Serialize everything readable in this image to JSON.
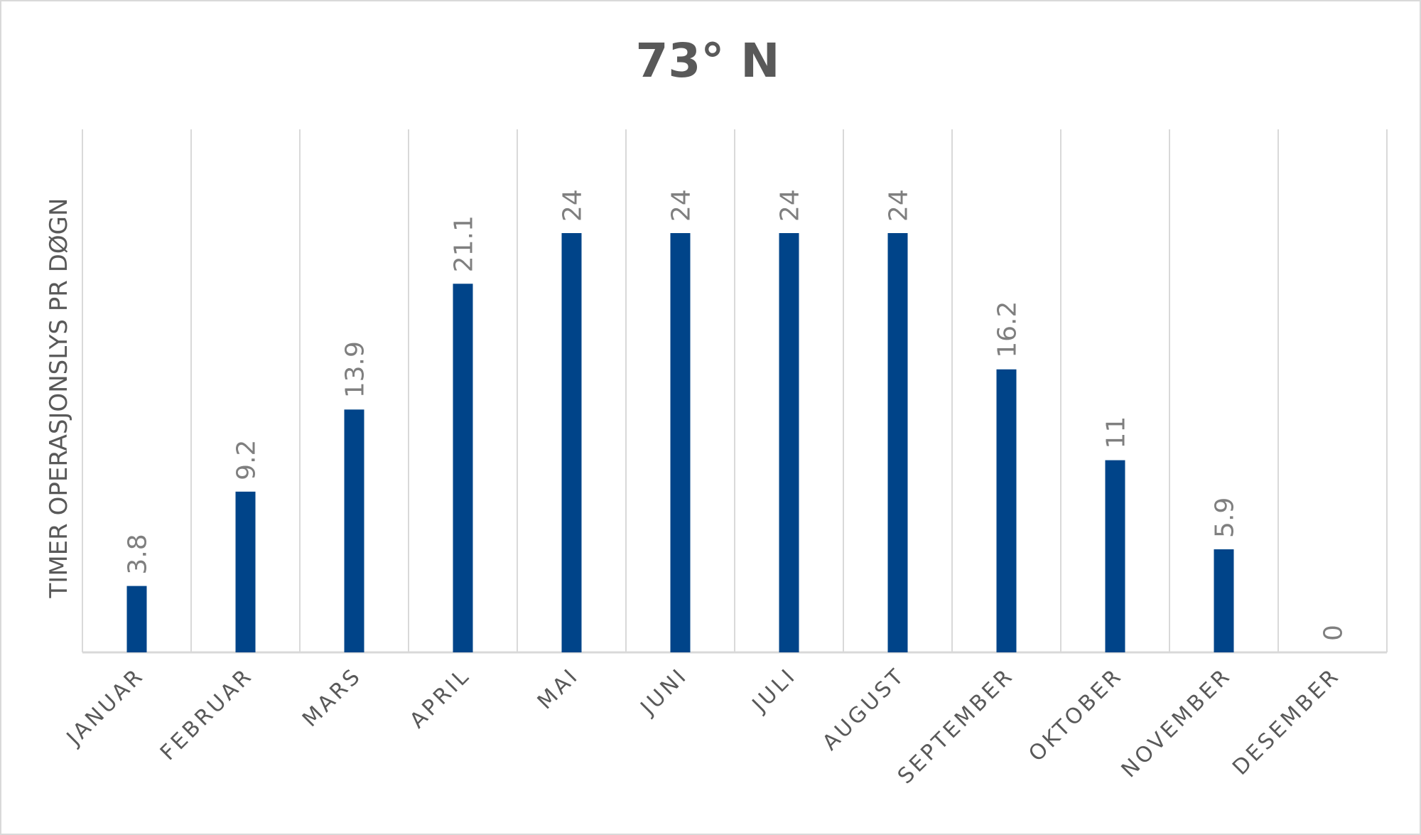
{
  "chart_data": {
    "type": "bar",
    "title": "73° N",
    "xlabel": "",
    "ylabel": "TIMER OPERASJONSLYS PR DØGN",
    "categories": [
      "JANUAR",
      "FEBRUAR",
      "MARS",
      "APRIL",
      "MAI",
      "JUNI",
      "JULI",
      "AUGUST",
      "SEPTEMBER",
      "OKTOBER",
      "NOVEMBER",
      "DESEMBER"
    ],
    "values": [
      3.8,
      9.2,
      13.9,
      21.1,
      24,
      24,
      24,
      24,
      16.2,
      11,
      5.9,
      0
    ],
    "ylim": [
      0,
      24
    ],
    "grid": "vertical category dividers",
    "legend": "none",
    "data_labels": true,
    "bar_color": "#004489"
  }
}
